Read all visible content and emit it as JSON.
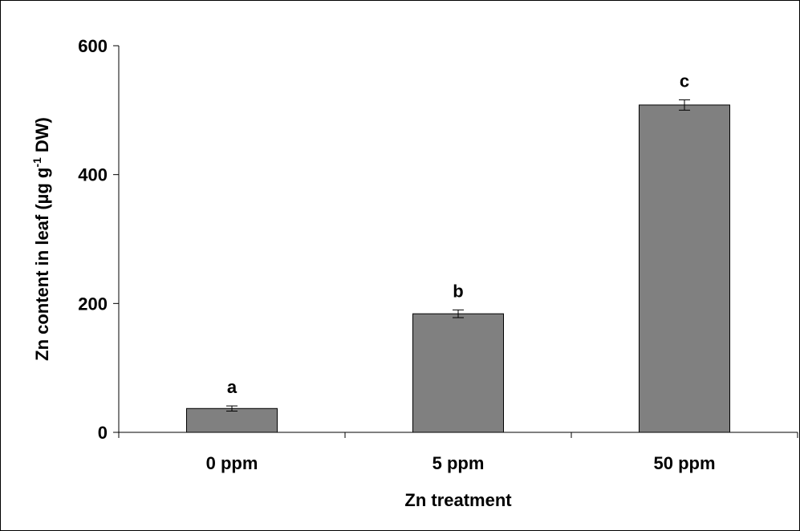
{
  "chart_data": {
    "type": "bar",
    "categories": [
      "0 ppm",
      "5 ppm",
      "50 ppm"
    ],
    "values": [
      37,
      184,
      508
    ],
    "errors": [
      4,
      6,
      8
    ],
    "significance_labels": [
      "a",
      "b",
      "c"
    ],
    "xlabel": "Zn treatment",
    "ylabel": {
      "main": "Zn content in leaf (µg g",
      "superscript": "-1",
      "tail": " DW)"
    },
    "ylim": [
      0,
      600
    ],
    "yticks": [
      "0",
      "200",
      "400",
      "600"
    ],
    "ytick_values": [
      0,
      200,
      400,
      600
    ],
    "grid": false,
    "legend": "none",
    "colors": {
      "bar_fill": "#808080",
      "bar_stroke": "#000000",
      "axis": "#000000"
    }
  }
}
